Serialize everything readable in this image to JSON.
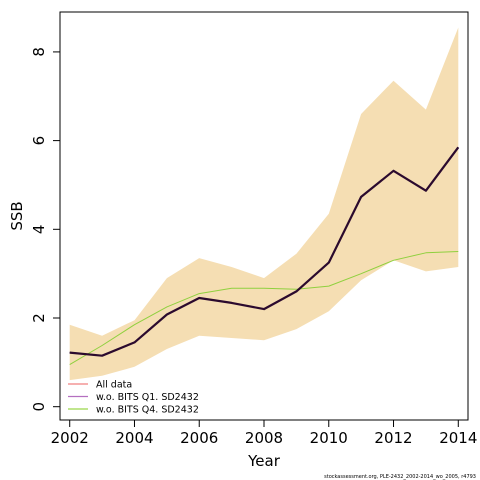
{
  "chart_data": {
    "type": "line",
    "xlabel": "Year",
    "ylabel": "SSB",
    "xlim": [
      2001.7,
      2014.3
    ],
    "ylim": [
      -0.3,
      8.9
    ],
    "xticks": [
      2002,
      2004,
      2006,
      2008,
      2010,
      2012,
      2014
    ],
    "yticks": [
      0,
      2,
      4,
      6,
      8
    ],
    "grid": false,
    "legend_position": "bottom-left",
    "x": [
      2002,
      2003,
      2004,
      2005,
      2006,
      2007,
      2008,
      2009,
      2010,
      2011,
      2012,
      2013,
      2014
    ],
    "band": {
      "color": "#f5deb3",
      "lower": [
        0.6,
        0.7,
        0.9,
        1.3,
        1.6,
        1.55,
        1.5,
        1.75,
        2.15,
        2.85,
        3.3,
        3.05,
        3.15
      ],
      "upper": [
        1.85,
        1.6,
        1.95,
        2.9,
        3.35,
        3.15,
        2.9,
        3.45,
        4.35,
        6.6,
        7.35,
        6.7,
        8.55
      ]
    },
    "series": [
      {
        "name": "All data",
        "legend_color": "#f08080",
        "plot_color": "#2b0a2e",
        "width": 2.2,
        "values": [
          1.22,
          1.15,
          1.45,
          2.08,
          2.45,
          2.34,
          2.2,
          2.6,
          3.25,
          4.73,
          5.32,
          4.87,
          5.85
        ]
      },
      {
        "name": "w.o. BITS Q1. SD2432",
        "legend_color": "#b46fc0",
        "plot_color": "#2b0a2e",
        "width": 1.2,
        "values": [
          1.22,
          1.15,
          1.45,
          2.08,
          2.45,
          2.34,
          2.2,
          2.6,
          3.25,
          4.73,
          5.32,
          4.87,
          5.85
        ]
      },
      {
        "name": "w.o. BITS Q4. SD2432",
        "legend_color": "#9bd84a",
        "plot_color": "#8fd03e",
        "width": 1.0,
        "values": [
          0.95,
          1.38,
          1.85,
          2.25,
          2.55,
          2.67,
          2.67,
          2.65,
          2.72,
          3.0,
          3.3,
          3.47,
          3.5
        ]
      }
    ]
  },
  "footer": {
    "text": "stockassessment.org, PLE-2432_2002-2014_wo_2005, r4793"
  }
}
